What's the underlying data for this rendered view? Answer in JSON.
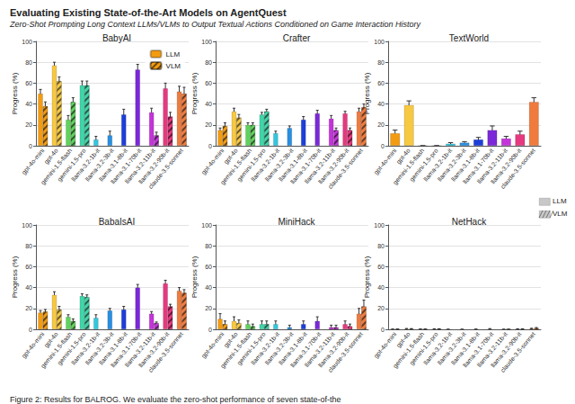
{
  "title": "Evaluating Existing State-of-the-Art Models on AgentQuest",
  "subtitle": "Zero-Shot Prompting Long Context LLMs/VLMs to Output Textual Actions Conditioned on Game Interaction History",
  "caption": "Figure 2: Results for BALROG. We evaluate the zero-shot performance of seven state-of-the",
  "legend": "right",
  "chart_data": [
    {
      "type": "bar",
      "title": "BabyAI",
      "ylabel": "Progress (%)",
      "categories": [
        "gpt-4o-mini",
        "gpt-4o",
        "gemini-1.5-flash",
        "gemini-1.5-pro",
        "llama-3.2-1b-it",
        "llama-3.2-3b-it",
        "llama-3.1-8b-it",
        "llama-3.1-70b-it",
        "llama-3.2-11b-it",
        "llama-3.2-90b-it",
        "claude-3.5-sonnet"
      ],
      "colors": [
        "#f39c12",
        "#f7c842",
        "#5fd35b",
        "#3ed6a8",
        "#33c7de",
        "#2a8fe0",
        "#1c3fd9",
        "#7b28d9",
        "#c334d9",
        "#e6397f",
        "#ef7b3e"
      ],
      "ylim": [
        0,
        100
      ],
      "yticks": [
        0,
        20,
        40,
        60,
        80,
        100
      ],
      "grid": true,
      "legend": "upper right",
      "series": [
        {
          "name": "LLM",
          "color": "#f39c12",
          "line_style": "solid",
          "values": [
            50,
            77,
            25,
            58,
            6,
            10,
            30,
            73,
            32,
            55,
            52
          ],
          "errors": [
            4,
            3,
            4,
            4,
            3,
            4,
            5,
            5,
            4,
            5,
            5
          ]
        },
        {
          "name": "VLM",
          "color": "#f39c12",
          "line_style": "hatched",
          "values": [
            38,
            62,
            42,
            58,
            null,
            null,
            null,
            null,
            10,
            28,
            50
          ],
          "errors": [
            4,
            4,
            4,
            4,
            null,
            null,
            null,
            null,
            3,
            4,
            6
          ]
        }
      ]
    },
    {
      "type": "bar",
      "title": "Crafter",
      "ylabel": "Progress (%)",
      "categories": [
        "gpt-4o-mini",
        "gpt-4o",
        "gemini-1.5-flash",
        "gemini-1.5-pro",
        "llama-3.2-1b-it",
        "llama-3.2-3b-it",
        "llama-3.1-8b-it",
        "llama-3.1-70b-it",
        "llama-3.2-11b-it",
        "llama-3.2-90b-it",
        "claude-3.5-sonnet"
      ],
      "colors": [
        "#f39c12",
        "#f7c842",
        "#5fd35b",
        "#3ed6a8",
        "#33c7de",
        "#2a8fe0",
        "#1c3fd9",
        "#7b28d9",
        "#c334d9",
        "#e6397f",
        "#ef7b3e"
      ],
      "ylim": [
        0,
        100
      ],
      "yticks": [
        0,
        20,
        40,
        60,
        80,
        100
      ],
      "grid": true,
      "series": [
        {
          "name": "LLM",
          "color": "#f39c12",
          "line_style": "solid",
          "values": [
            15,
            33,
            20,
            30,
            12,
            17,
            25,
            31,
            26,
            31,
            33
          ],
          "errors": [
            2,
            3,
            2,
            2,
            2,
            2,
            3,
            3,
            3,
            2,
            3
          ]
        },
        {
          "name": "VLM",
          "color": "#f39c12",
          "line_style": "hatched",
          "values": [
            19,
            27,
            20,
            33,
            null,
            null,
            null,
            null,
            15,
            15,
            37
          ],
          "errors": [
            3,
            3,
            2,
            2,
            null,
            null,
            null,
            null,
            2,
            2,
            3
          ]
        }
      ]
    },
    {
      "type": "bar",
      "title": "TextWorld",
      "ylabel": "Progress (%)",
      "categories": [
        "gpt-4o-mini",
        "gpt-4o",
        "gemini-1.5-flash",
        "gemini-1.5-pro",
        "llama-3.2-1b-it",
        "llama-3.2-3b-it",
        "llama-3.1-8b-it",
        "llama-3.1-70b-it",
        "llama-3.2-11b-it",
        "llama-3.2-90b-it",
        "claude-3.5-sonnet"
      ],
      "colors": [
        "#f39c12",
        "#f7c842",
        "#5fd35b",
        "#3ed6a8",
        "#33c7de",
        "#2a8fe0",
        "#1c3fd9",
        "#7b28d9",
        "#c334d9",
        "#e6397f",
        "#ef7b3e"
      ],
      "ylim": [
        0,
        100
      ],
      "yticks": [
        0,
        20,
        40,
        60,
        80,
        100
      ],
      "grid": true,
      "series": [
        {
          "name": "LLM",
          "color": "#f39c12",
          "line_style": "solid",
          "values": [
            12,
            39,
            0,
            0,
            2,
            3,
            6,
            15,
            7,
            11,
            42
          ],
          "errors": [
            3,
            4,
            0,
            0,
            1,
            1,
            2,
            4,
            2,
            3,
            4
          ]
        }
      ]
    },
    {
      "type": "bar",
      "title": "BabaIsAI",
      "ylabel": "Progress (%)",
      "categories": [
        "gpt-4o-mini",
        "gpt-4o",
        "gemini-1.5-flash",
        "gemini-1.5-pro",
        "llama-3.2-1b-it",
        "llama-3.2-3b-it",
        "llama-3.1-8b-it",
        "llama-3.1-70b-it",
        "llama-3.2-11b-it",
        "llama-3.2-90b-it",
        "claude-3.5-sonnet"
      ],
      "colors": [
        "#f39c12",
        "#f7c842",
        "#5fd35b",
        "#3ed6a8",
        "#33c7de",
        "#2a8fe0",
        "#1c3fd9",
        "#7b28d9",
        "#c334d9",
        "#e6397f",
        "#ef7b3e"
      ],
      "ylim": [
        0,
        100
      ],
      "yticks": [
        0,
        20,
        40,
        60,
        80,
        100
      ],
      "grid": true,
      "series": [
        {
          "name": "LLM",
          "color": "#f39c12",
          "line_style": "solid",
          "values": [
            16,
            33,
            12,
            32,
            11,
            18,
            19,
            40,
            15,
            44,
            37
          ],
          "errors": [
            2,
            3,
            2,
            2,
            3,
            2,
            3,
            3,
            2,
            3,
            3
          ]
        },
        {
          "name": "VLM",
          "color": "#f39c12",
          "line_style": "hatched",
          "values": [
            17,
            19,
            8,
            31,
            null,
            null,
            null,
            null,
            6,
            22,
            35
          ],
          "errors": [
            2,
            3,
            2,
            2,
            null,
            null,
            null,
            null,
            1,
            2,
            3
          ]
        }
      ]
    },
    {
      "type": "bar",
      "title": "MiniHack",
      "ylabel": "Progress (%)",
      "categories": [
        "gpt-4o-mini",
        "gpt-4o",
        "gemini-1.5-flash",
        "gemini-1.5-pro",
        "llama-3.2-1b-it",
        "llama-3.2-3b-it",
        "llama-3.1-8b-it",
        "llama-3.1-70b-it",
        "llama-3.2-11b-it",
        "llama-3.2-90b-it",
        "claude-3.5-sonnet"
      ],
      "colors": [
        "#f39c12",
        "#f7c842",
        "#5fd35b",
        "#3ed6a8",
        "#33c7de",
        "#2a8fe0",
        "#1c3fd9",
        "#7b28d9",
        "#c334d9",
        "#e6397f",
        "#ef7b3e"
      ],
      "ylim": [
        0,
        100
      ],
      "yticks": [
        0,
        20,
        40,
        60,
        80,
        100
      ],
      "grid": true,
      "series": [
        {
          "name": "LLM",
          "color": "#f39c12",
          "line_style": "solid",
          "values": [
            10,
            8,
            5,
            5,
            5,
            2,
            5,
            8,
            2,
            5,
            15
          ],
          "errors": [
            5,
            4,
            3,
            3,
            3,
            2,
            3,
            4,
            2,
            3,
            5
          ]
        },
        {
          "name": "VLM",
          "color": "#f39c12",
          "line_style": "hatched",
          "values": [
            5,
            6,
            3,
            5,
            null,
            null,
            null,
            null,
            2,
            3,
            22
          ],
          "errors": [
            3,
            3,
            2,
            3,
            null,
            null,
            null,
            null,
            2,
            2,
            6
          ]
        }
      ]
    },
    {
      "type": "bar",
      "title": "NetHack",
      "ylabel": "Progress (%)",
      "categories": [
        "gpt-4o-mini",
        "gpt-4o",
        "gemini-1.5-flash",
        "gemini-1.5-pro",
        "llama-3.2-1b-it",
        "llama-3.2-3b-it",
        "llama-3.1-8b-it",
        "llama-3.1-70b-it",
        "llama-3.2-11b-it",
        "llama-3.2-90b-it",
        "claude-3.5-sonnet"
      ],
      "colors": [
        "#f39c12",
        "#f7c842",
        "#5fd35b",
        "#3ed6a8",
        "#33c7de",
        "#2a8fe0",
        "#1c3fd9",
        "#7b28d9",
        "#c334d9",
        "#e6397f",
        "#ef7b3e"
      ],
      "ylim": [
        0,
        100
      ],
      "yticks": [
        0,
        20,
        40,
        60,
        80,
        100
      ],
      "grid": true,
      "series": [
        {
          "name": "LLM",
          "color": "#f39c12",
          "line_style": "solid",
          "values": [
            0.1,
            0.5,
            0.2,
            0.3,
            0,
            0,
            0.1,
            0.4,
            0,
            0.3,
            0.6
          ],
          "errors": [
            0.1,
            0.3,
            0.1,
            0.2,
            0,
            0,
            0.1,
            0.3,
            0,
            0.2,
            0.4
          ]
        },
        {
          "name": "VLM",
          "color": "#f39c12",
          "line_style": "hatched",
          "values": [
            0.1,
            0.4,
            0.1,
            0.3,
            null,
            null,
            null,
            null,
            0,
            0.2,
            1.2
          ],
          "errors": [
            0.1,
            0.3,
            0.1,
            0.2,
            null,
            null,
            null,
            null,
            0,
            0.2,
            0.5
          ]
        }
      ]
    }
  ]
}
